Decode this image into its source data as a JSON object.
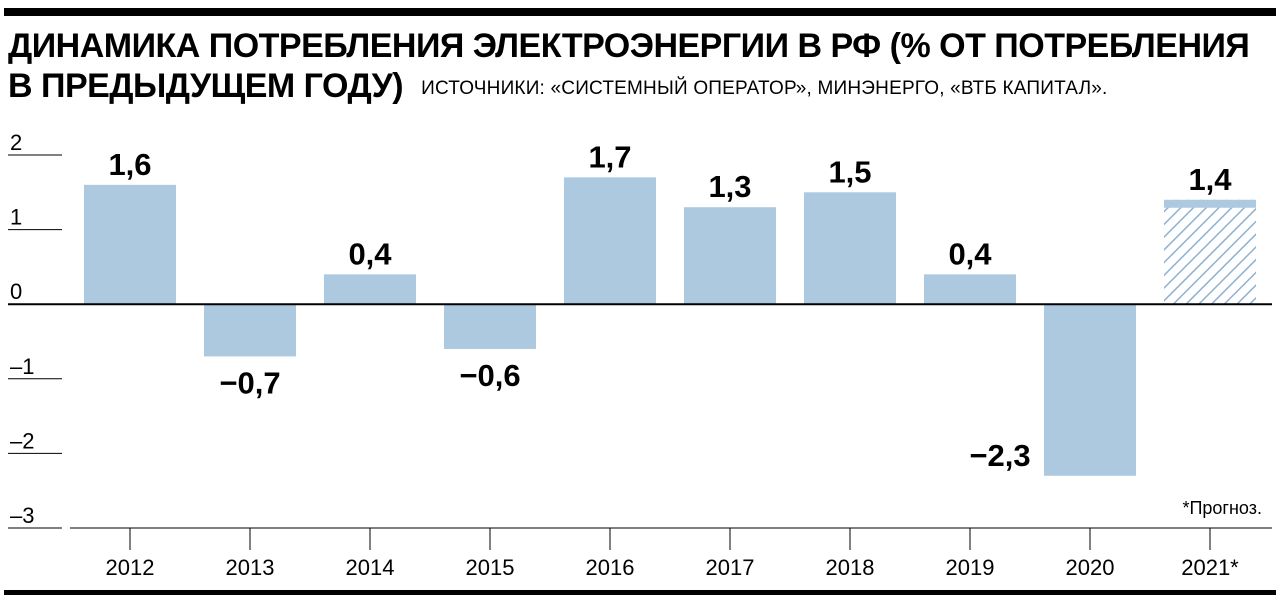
{
  "header": {
    "title_line1": "ДИНАМИКА ПОТРЕБЛЕНИЯ ЭЛЕКТРОЭНЕРГИИ В РФ (% ОТ ПОТРЕБЛЕНИЯ",
    "title_line2": "В ПРЕДЫДУЩЕМ ГОДУ)",
    "source": "ИСТОЧНИКИ: «СИСТЕМНЫЙ ОПЕРАТОР», МИНЭНЕРГО, «ВТБ КАПИТАЛ»."
  },
  "chart_data": {
    "type": "bar",
    "title": "ДИНАМИКА ПОТРЕБЛЕНИЯ ЭЛЕКТРОЭНЕРГИИ В РФ (% ОТ ПОТРЕБЛЕНИЯ В ПРЕДЫДУЩЕМ ГОДУ)",
    "categories": [
      "2012",
      "2013",
      "2014",
      "2015",
      "2016",
      "2017",
      "2018",
      "2019",
      "2020",
      "2021*"
    ],
    "values": [
      1.6,
      -0.7,
      0.4,
      -0.6,
      1.7,
      1.3,
      1.5,
      0.4,
      -2.3,
      1.4
    ],
    "value_labels": [
      "1,6",
      "−0,7",
      "0,4",
      "−0,6",
      "1,7",
      "1,3",
      "1,5",
      "0,4",
      "−2,3",
      "1,4"
    ],
    "forecast": [
      false,
      false,
      false,
      false,
      false,
      false,
      false,
      false,
      false,
      true
    ],
    "yticks": [
      2,
      1,
      0,
      -1,
      -2,
      -3
    ],
    "ytick_labels": [
      "2",
      "1",
      "0",
      "–1",
      "–2",
      "–3"
    ],
    "ylim": [
      -3,
      2
    ],
    "xlabel": "",
    "ylabel": "",
    "grid": false,
    "bar_color": "#adc9e0",
    "forecast_stripe_color": "#8fb1d0",
    "footnote": "*Прогноз."
  }
}
